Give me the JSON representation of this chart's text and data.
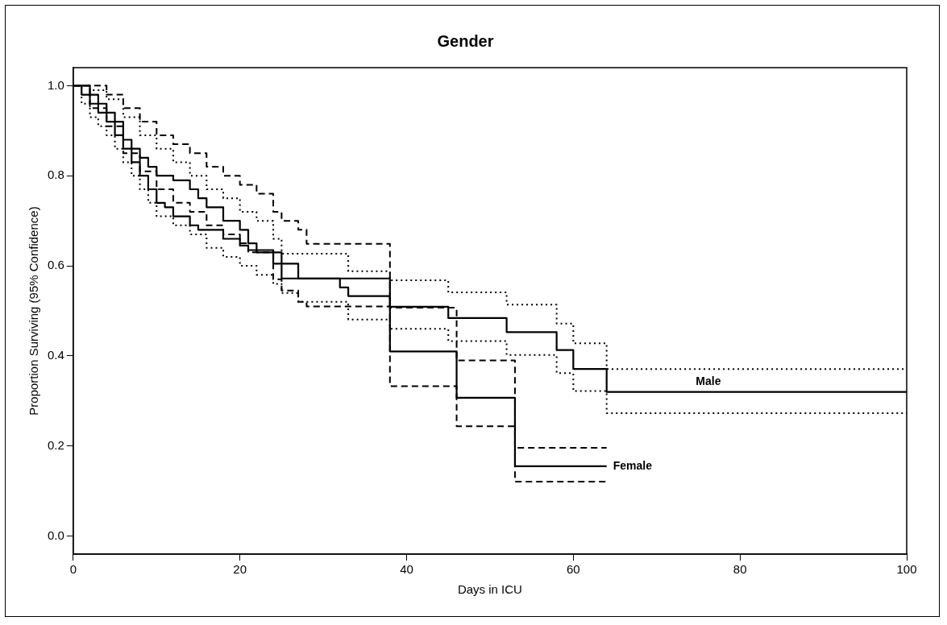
{
  "chart_data": {
    "type": "step",
    "title": "Gender",
    "xlabel": "Days in ICU",
    "ylabel": "Proportion Surviving (95% Confidence)",
    "xlim": [
      0,
      100
    ],
    "xticks": [
      0,
      20,
      40,
      60,
      80,
      100
    ],
    "ylim": [
      -0.04,
      1.04
    ],
    "yticks": [
      {
        "value": 0,
        "label": "0.0"
      },
      {
        "value": 0.2,
        "label": "0.2"
      },
      {
        "value": 0.4,
        "label": "0.4"
      },
      {
        "value": 0.6,
        "label": "0.6"
      },
      {
        "value": 0.8,
        "label": "0.8"
      },
      {
        "value": 1,
        "label": "1.0"
      }
    ],
    "grid": false,
    "legend": false,
    "marker": "none",
    "series": [
      {
        "name": "Male",
        "color": "#000000",
        "line_style": "solid",
        "x": [
          0,
          1,
          2,
          3,
          4,
          5,
          6,
          7,
          8,
          9,
          10,
          11,
          12,
          14,
          15,
          18,
          20,
          21,
          24,
          27,
          32,
          33,
          38,
          45,
          52,
          58,
          60,
          64,
          100
        ],
        "values": [
          1,
          0.98,
          0.96,
          0.94,
          0.92,
          0.89,
          0.86,
          0.83,
          0.8,
          0.77,
          0.74,
          0.73,
          0.71,
          0.69,
          0.68,
          0.66,
          0.645,
          0.635,
          0.605,
          0.572,
          0.552,
          0.533,
          0.509,
          0.484,
          0.453,
          0.413,
          0.371,
          0.32,
          0.32
        ]
      },
      {
        "color": "#000000",
        "line_style": "dotted",
        "x": [
          0,
          2,
          4,
          6,
          8,
          10,
          12,
          14,
          16,
          18,
          20,
          22,
          24,
          25,
          33,
          38,
          45,
          52,
          58,
          60,
          64,
          100
        ],
        "values": [
          1,
          0.99,
          0.97,
          0.93,
          0.89,
          0.86,
          0.83,
          0.8,
          0.77,
          0.75,
          0.72,
          0.7,
          0.66,
          0.627,
          0.588,
          0.568,
          0.541,
          0.514,
          0.472,
          0.428,
          0.371,
          0.371
        ]
      },
      {
        "color": "#000000",
        "line_style": "dotted",
        "x": [
          0,
          1,
          2,
          3,
          4,
          5,
          6,
          7,
          8,
          9,
          10,
          12,
          14,
          16,
          18,
          20,
          22,
          24,
          25,
          27,
          33,
          38,
          45,
          52,
          58,
          60,
          64,
          100
        ],
        "values": [
          1,
          0.96,
          0.93,
          0.91,
          0.89,
          0.86,
          0.83,
          0.8,
          0.77,
          0.74,
          0.71,
          0.69,
          0.67,
          0.64,
          0.62,
          0.6,
          0.58,
          0.56,
          0.54,
          0.52,
          0.481,
          0.46,
          0.433,
          0.402,
          0.362,
          0.322,
          0.273,
          0.273
        ]
      },
      {
        "name": "Female",
        "color": "#000000",
        "line_style": "solid",
        "x": [
          0,
          2,
          3,
          4,
          5,
          6,
          7,
          8,
          9,
          10,
          12,
          14,
          15,
          16,
          18,
          20,
          21,
          22,
          25,
          38,
          46,
          53,
          64
        ],
        "values": [
          1,
          0.98,
          0.96,
          0.94,
          0.92,
          0.88,
          0.86,
          0.84,
          0.82,
          0.8,
          0.79,
          0.77,
          0.75,
          0.73,
          0.7,
          0.68,
          0.65,
          0.63,
          0.572,
          0.41,
          0.307,
          0.155,
          0.155
        ]
      },
      {
        "color": "#000000",
        "line_style": "dashed",
        "x": [
          0,
          4,
          6,
          8,
          10,
          12,
          14,
          16,
          18,
          20,
          22,
          24,
          25,
          27,
          28,
          38,
          46,
          53,
          64
        ],
        "values": [
          1,
          0.98,
          0.95,
          0.92,
          0.89,
          0.87,
          0.85,
          0.82,
          0.8,
          0.78,
          0.76,
          0.72,
          0.7,
          0.68,
          0.649,
          0.507,
          0.39,
          0.196,
          0.196
        ]
      },
      {
        "color": "#000000",
        "line_style": "dashed",
        "x": [
          0,
          2,
          4,
          6,
          8,
          10,
          12,
          14,
          16,
          18,
          20,
          21,
          24,
          25,
          27,
          28,
          38,
          46,
          53,
          64
        ],
        "values": [
          1,
          0.95,
          0.91,
          0.85,
          0.81,
          0.77,
          0.74,
          0.72,
          0.69,
          0.67,
          0.65,
          0.63,
          0.57,
          0.545,
          0.52,
          0.51,
          0.333,
          0.244,
          0.121,
          0.121
        ]
      }
    ]
  }
}
